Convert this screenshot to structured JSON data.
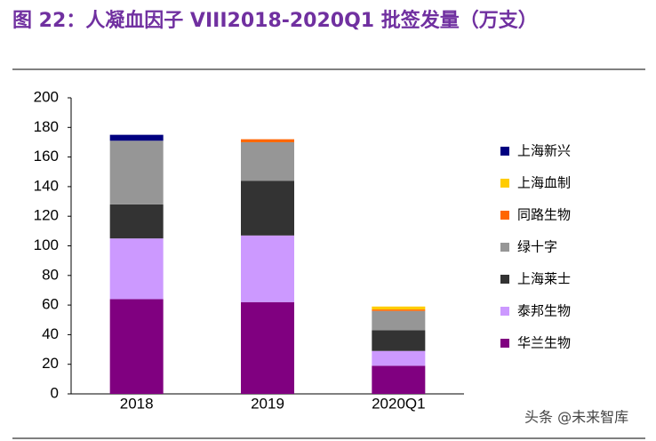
{
  "chart_data": {
    "type": "stacked-bar",
    "title": "图 22：人凝血因子 VIII2018-2020Q1 批签发量（万支）",
    "categories": [
      "2018",
      "2019",
      "2020Q1"
    ],
    "series": [
      {
        "name": "华兰生物",
        "color": "#800080",
        "values": [
          64,
          62,
          19
        ]
      },
      {
        "name": "泰邦生物",
        "color": "#cc99ff",
        "values": [
          41,
          45,
          10
        ]
      },
      {
        "name": "上海莱士",
        "color": "#333333",
        "values": [
          23,
          37,
          14
        ]
      },
      {
        "name": "绿十字",
        "color": "#969696",
        "values": [
          43,
          26,
          13
        ]
      },
      {
        "name": "同路生物",
        "color": "#ff6600",
        "values": [
          0,
          2,
          1
        ]
      },
      {
        "name": "上海血制",
        "color": "#ffcc00",
        "values": [
          0,
          0,
          2
        ]
      },
      {
        "name": "上海新兴",
        "color": "#000080",
        "values": [
          4,
          0,
          0
        ]
      }
    ],
    "ylim": [
      0,
      200
    ],
    "yticks": [
      0,
      20,
      40,
      60,
      80,
      100,
      120,
      140,
      160,
      180,
      200
    ],
    "watermark": "头条 @未来智库"
  }
}
